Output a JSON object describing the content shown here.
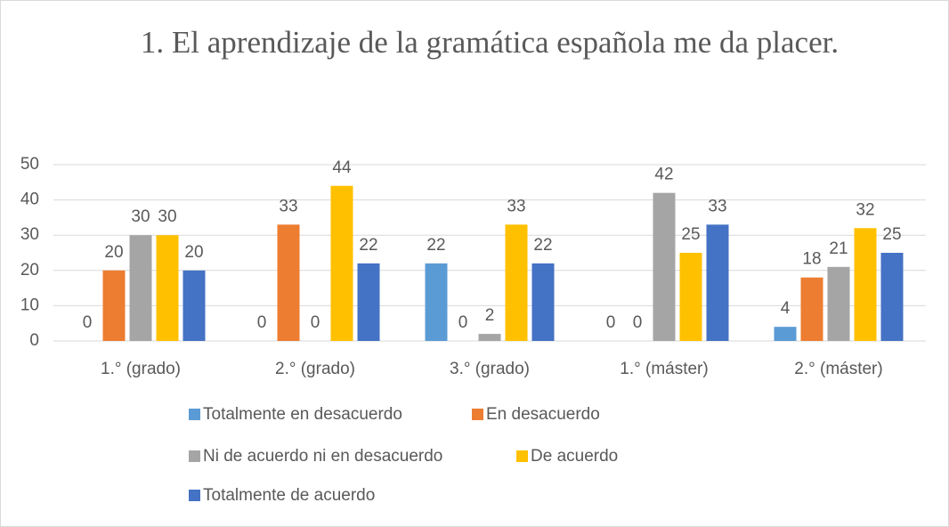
{
  "chart_data": {
    "type": "bar",
    "title": "1. El aprendizaje de la gramática española me da placer.",
    "categories": [
      "1.° (grado)",
      "2.° (grado)",
      "3.° (grado)",
      "1.° (máster)",
      "2.° (máster)"
    ],
    "series": [
      {
        "name": "Totalmente en desacuerdo",
        "color": "#5b9bd5",
        "values": [
          0,
          0,
          22,
          0,
          4
        ]
      },
      {
        "name": "En desacuerdo",
        "color": "#ed7d31",
        "values": [
          20,
          33,
          0,
          0,
          18
        ]
      },
      {
        "name": "Ni de acuerdo ni en desacuerdo",
        "color": "#a5a5a5",
        "values": [
          30,
          0,
          2,
          42,
          21
        ]
      },
      {
        "name": "De acuerdo",
        "color": "#ffc000",
        "values": [
          30,
          44,
          33,
          25,
          32
        ]
      },
      {
        "name": "Totalmente de acuerdo",
        "color": "#4472c4",
        "values": [
          20,
          22,
          22,
          33,
          25
        ]
      }
    ],
    "ylim": [
      0,
      50
    ],
    "yticks": [
      0,
      10,
      20,
      30,
      40,
      50
    ],
    "grid": true,
    "legend": "bottom"
  }
}
